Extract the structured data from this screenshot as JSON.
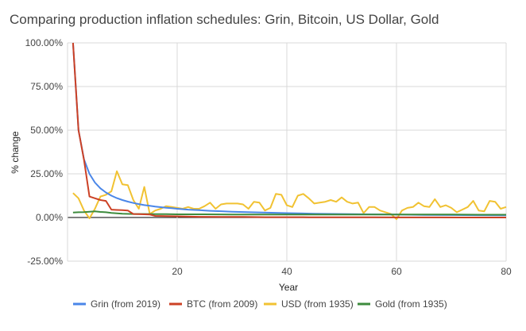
{
  "chart_data": {
    "type": "line",
    "title": "Comparing production inflation schedules: Grin, Bitcoin, US Dollar, Gold",
    "xlabel": "Year",
    "ylabel": "% change",
    "xlim": [
      0,
      80
    ],
    "ylim": [
      -25,
      100
    ],
    "x_ticks": [
      20,
      40,
      60,
      80
    ],
    "x_tick_labels": [
      "20",
      "40",
      "60",
      "80"
    ],
    "y_ticks": [
      -25,
      0,
      25,
      50,
      75,
      100
    ],
    "y_tick_labels": [
      "-25.00%",
      "0.00%",
      "25.00%",
      "50.00%",
      "75.00%",
      "100.00%"
    ],
    "grid": "horizontal",
    "legend": "bottom",
    "series": [
      {
        "name": "Grin (from 2019)",
        "color": "#4a86e8",
        "x": [
          1,
          2,
          3,
          4,
          5,
          6,
          7,
          8,
          9,
          10,
          11,
          12,
          13,
          14,
          15,
          16,
          17,
          18,
          19,
          20,
          22,
          24,
          26,
          28,
          30,
          35,
          40,
          45,
          50,
          55,
          60,
          65,
          70,
          75,
          80
        ],
        "y": [
          100,
          50,
          33.3,
          25,
          20,
          16.7,
          14.3,
          12.5,
          11.1,
          10,
          9.1,
          8.3,
          7.7,
          7.1,
          6.7,
          6.25,
          5.9,
          5.6,
          5.3,
          5,
          4.5,
          4.2,
          3.8,
          3.6,
          3.3,
          2.9,
          2.5,
          2.2,
          2,
          1.8,
          1.7,
          1.5,
          1.4,
          1.3,
          1.25
        ]
      },
      {
        "name": "BTC (from 2009)",
        "color": "#cc4125",
        "x": [
          1,
          2,
          3,
          4,
          5,
          6,
          7,
          8,
          9,
          10,
          11,
          12,
          13,
          14,
          15,
          16,
          17,
          18,
          19,
          20,
          24,
          28,
          32,
          36,
          40,
          44,
          48,
          52,
          56,
          60,
          64,
          68,
          72,
          76,
          80
        ],
        "y": [
          100,
          50,
          33,
          12,
          11,
          10,
          9.5,
          4.5,
          4.3,
          4.2,
          4,
          2,
          1.9,
          1.8,
          1.7,
          0.9,
          0.85,
          0.8,
          0.75,
          0.7,
          0.4,
          0.35,
          0.3,
          0.2,
          0.2,
          0.15,
          0.12,
          0.1,
          0.08,
          0.05,
          0.04,
          0.03,
          0.02,
          0.01,
          0
        ]
      },
      {
        "name": "USD (from 1935)",
        "color": "#f1c232",
        "x": [
          1,
          2,
          3,
          4,
          5,
          6,
          7,
          8,
          9,
          10,
          11,
          12,
          13,
          14,
          15,
          16,
          17,
          18,
          19,
          20,
          21,
          22,
          23,
          24,
          25,
          26,
          27,
          28,
          29,
          30,
          31,
          32,
          33,
          34,
          35,
          36,
          37,
          38,
          39,
          40,
          41,
          42,
          43,
          44,
          45,
          46,
          47,
          48,
          49,
          50,
          51,
          52,
          53,
          54,
          55,
          56,
          57,
          58,
          59,
          60,
          61,
          62,
          63,
          64,
          65,
          66,
          67,
          68,
          69,
          70,
          71,
          72,
          73,
          74,
          75,
          76,
          77,
          78,
          79,
          80
        ],
        "y": [
          14,
          11,
          4,
          -0.5,
          5,
          12,
          13,
          15,
          26.5,
          19,
          18.5,
          10,
          5,
          17.5,
          2,
          4,
          5,
          6.5,
          6,
          5.5,
          5,
          6,
          5,
          5,
          6.5,
          8.5,
          5,
          7.5,
          8,
          8,
          8,
          7.5,
          5,
          9,
          8.5,
          4,
          5.5,
          13.5,
          13,
          7,
          6,
          12.5,
          13.5,
          11,
          8,
          8.5,
          9,
          10,
          9,
          11.5,
          9,
          8,
          8.5,
          2.5,
          6,
          6,
          4,
          3,
          2,
          -1,
          4,
          5.5,
          6,
          8.5,
          6.5,
          6,
          10.5,
          6,
          7,
          5.5,
          3,
          4.5,
          6,
          9.5,
          4,
          3.5,
          9.5,
          9,
          5,
          6
        ]
      },
      {
        "name": "Gold (from 1935)",
        "color": "#3d8b3d",
        "x": [
          1,
          2,
          3,
          4,
          5,
          6,
          7,
          8,
          9,
          10,
          12,
          14,
          16,
          18,
          20,
          25,
          30,
          35,
          40,
          45,
          50,
          55,
          60,
          65,
          70,
          75,
          80
        ],
        "y": [
          2.8,
          3,
          3.1,
          3.3,
          3.5,
          3.2,
          3,
          2.6,
          2.4,
          2.2,
          2,
          2,
          1.9,
          1.9,
          1.8,
          1.8,
          1.7,
          1.7,
          1.7,
          1.7,
          1.7,
          1.7,
          1.7,
          1.7,
          1.7,
          1.6,
          1.6
        ]
      }
    ]
  }
}
